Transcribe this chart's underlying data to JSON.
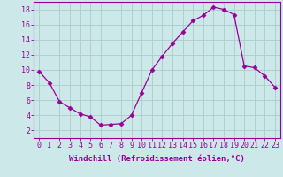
{
  "x": [
    0,
    1,
    2,
    3,
    4,
    5,
    6,
    7,
    8,
    9,
    10,
    11,
    12,
    13,
    14,
    15,
    16,
    17,
    18,
    19,
    20,
    21,
    22,
    23
  ],
  "y": [
    9.8,
    8.3,
    5.8,
    5.0,
    4.2,
    3.8,
    2.7,
    2.8,
    2.9,
    4.0,
    7.0,
    10.0,
    11.8,
    13.5,
    15.0,
    16.5,
    17.2,
    18.3,
    18.0,
    17.3,
    10.5,
    10.3,
    9.2,
    7.7
  ],
  "line_color": "#990099",
  "marker": "D",
  "marker_size": 2.5,
  "bg_color": "#cce8e8",
  "grid_color": "#aacccc",
  "xlabel": "Windchill (Refroidissement éolien,°C)",
  "xlabel_fontsize": 6.5,
  "tick_fontsize": 6.0,
  "ylim": [
    1,
    19
  ],
  "xlim": [
    -0.5,
    23.5
  ],
  "yticks": [
    2,
    4,
    6,
    8,
    10,
    12,
    14,
    16,
    18
  ],
  "xticks": [
    0,
    1,
    2,
    3,
    4,
    5,
    6,
    7,
    8,
    9,
    10,
    11,
    12,
    13,
    14,
    15,
    16,
    17,
    18,
    19,
    20,
    21,
    22,
    23
  ]
}
